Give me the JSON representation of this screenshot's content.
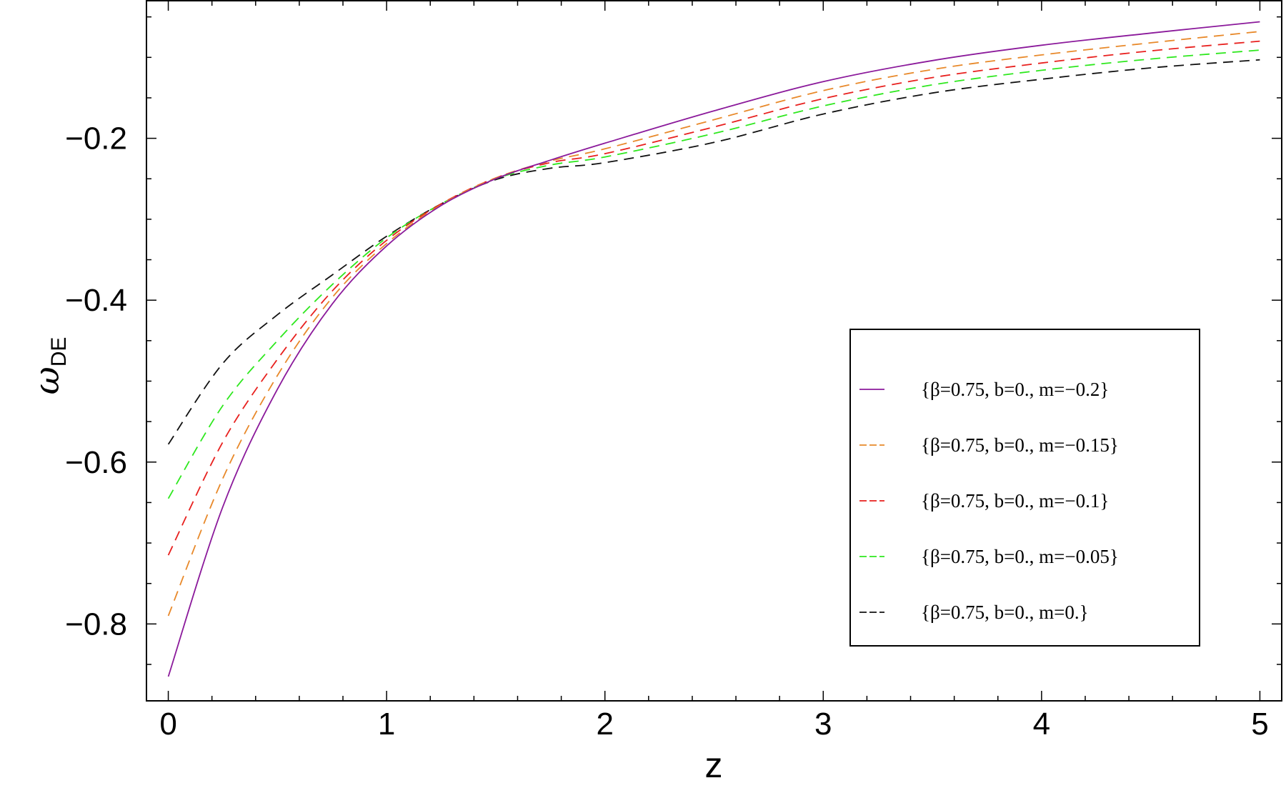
{
  "chart_data": {
    "type": "line",
    "xlabel": "z",
    "ylabel": {
      "main": "ω",
      "sub": "DE"
    },
    "xlim": [
      -0.1,
      5.1
    ],
    "ylim": [
      -0.895,
      -0.03
    ],
    "xticks": [
      0,
      1,
      2,
      3,
      4,
      5
    ],
    "xtick_labels": [
      "0",
      "1",
      "2",
      "3",
      "4",
      "5"
    ],
    "yticks": [
      -0.8,
      -0.6,
      -0.4,
      -0.2
    ],
    "ytick_labels": [
      "−0.8",
      "−0.6",
      "−0.4",
      "−0.2"
    ],
    "grid": false,
    "legend_position": "right, lower-middle",
    "x": [
      0,
      0.25,
      0.5,
      0.75,
      1,
      1.25,
      1.5,
      1.75,
      2,
      2.5,
      3,
      3.5,
      4,
      4.5,
      5
    ],
    "series": [
      {
        "name": "{β=0.75, b=0., m=−0.2}",
        "color": "#8B1A9B",
        "dash": "solid",
        "values": [
          -0.865,
          -0.655,
          -0.51,
          -0.405,
          -0.333,
          -0.283,
          -0.25,
          -0.227,
          -0.206,
          -0.166,
          -0.13,
          -0.104,
          -0.085,
          -0.07,
          -0.056
        ]
      },
      {
        "name": "{β=0.75, b=0., m=−0.15}",
        "color": "#E8892A",
        "dash": "dashed",
        "values": [
          -0.79,
          -0.62,
          -0.493,
          -0.397,
          -0.33,
          -0.282,
          -0.249,
          -0.228,
          -0.213,
          -0.177,
          -0.141,
          -0.115,
          -0.097,
          -0.082,
          -0.068
        ]
      },
      {
        "name": "{β=0.75, b=0., m=−0.1}",
        "color": "#E8201E",
        "dash": "dashed",
        "values": [
          -0.715,
          -0.575,
          -0.473,
          -0.389,
          -0.326,
          -0.281,
          -0.249,
          -0.23,
          -0.219,
          -0.186,
          -0.151,
          -0.125,
          -0.107,
          -0.092,
          -0.08
        ]
      },
      {
        "name": "{β=0.75, b=0., m=−0.05}",
        "color": "#2EE81E",
        "dash": "dashed",
        "values": [
          -0.645,
          -0.53,
          -0.45,
          -0.381,
          -0.323,
          -0.281,
          -0.25,
          -0.233,
          -0.223,
          -0.194,
          -0.16,
          -0.134,
          -0.116,
          -0.102,
          -0.091
        ]
      },
      {
        "name": "{β=0.75, b=0., m=0.}",
        "color": "#111111",
        "dash": "dashed",
        "values": [
          -0.578,
          -0.478,
          -0.418,
          -0.369,
          -0.321,
          -0.281,
          -0.251,
          -0.237,
          -0.23,
          -0.205,
          -0.17,
          -0.144,
          -0.127,
          -0.113,
          -0.103
        ]
      }
    ]
  }
}
